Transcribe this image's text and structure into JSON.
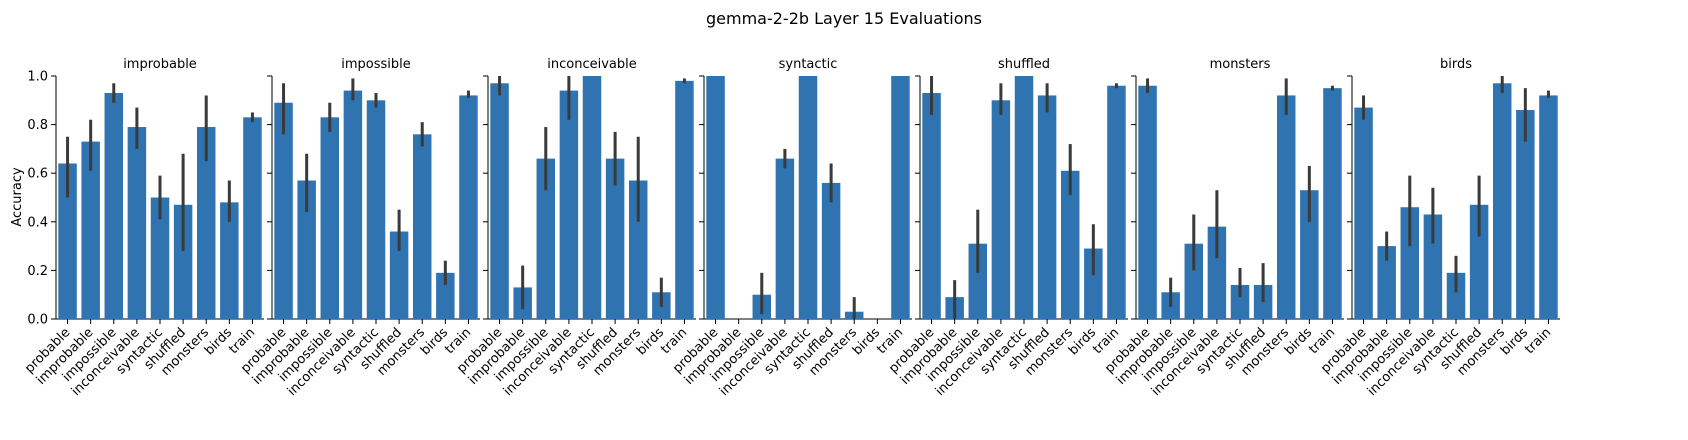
{
  "chart_data": {
    "type": "bar",
    "title": "gemma-2-2b Layer 15 Evaluations",
    "ylabel": "Accuracy",
    "ylim": [
      0,
      1.0
    ],
    "yticks": [
      "0.0",
      "0.2",
      "0.4",
      "0.6",
      "0.8",
      "1.0"
    ],
    "bar_color": "#2f74b1",
    "errorbar_color": "#3a3a3a",
    "categories": [
      "probable",
      "improbable",
      "impossible",
      "inconceivable",
      "syntactic",
      "shuffled",
      "monsters",
      "birds",
      "train"
    ],
    "panels": [
      {
        "title": "improbable",
        "values": [
          0.64,
          0.73,
          0.93,
          0.79,
          0.5,
          0.47,
          0.79,
          0.48,
          0.83
        ],
        "err_low": [
          0.5,
          0.61,
          0.89,
          0.7,
          0.41,
          0.28,
          0.65,
          0.4,
          0.81
        ],
        "err_high": [
          0.75,
          0.82,
          0.97,
          0.87,
          0.59,
          0.68,
          0.92,
          0.57,
          0.85
        ]
      },
      {
        "title": "impossible",
        "values": [
          0.89,
          0.57,
          0.83,
          0.94,
          0.9,
          0.36,
          0.76,
          0.19,
          0.92
        ],
        "err_low": [
          0.76,
          0.44,
          0.77,
          0.9,
          0.87,
          0.28,
          0.71,
          0.14,
          0.91
        ],
        "err_high": [
          0.97,
          0.68,
          0.89,
          0.99,
          0.93,
          0.45,
          0.81,
          0.24,
          0.94
        ]
      },
      {
        "title": "inconceivable",
        "values": [
          0.97,
          0.13,
          0.66,
          0.94,
          1.0,
          0.66,
          0.57,
          0.11,
          0.98
        ],
        "err_low": [
          0.92,
          0.04,
          0.53,
          0.82,
          1.0,
          0.55,
          0.4,
          0.05,
          0.97
        ],
        "err_high": [
          1.0,
          0.22,
          0.79,
          1.0,
          1.0,
          0.77,
          0.75,
          0.17,
          0.99
        ]
      },
      {
        "title": "syntactic",
        "values": [
          1.0,
          0.0,
          0.1,
          0.66,
          1.0,
          0.56,
          0.03,
          0.0,
          1.0
        ],
        "err_low": [
          1.0,
          0.0,
          0.02,
          0.62,
          1.0,
          0.48,
          0.0,
          0.0,
          1.0
        ],
        "err_high": [
          1.0,
          0.0,
          0.19,
          0.7,
          1.0,
          0.64,
          0.09,
          0.0,
          1.0
        ]
      },
      {
        "title": "shuffled",
        "values": [
          0.93,
          0.09,
          0.31,
          0.9,
          1.0,
          0.92,
          0.61,
          0.29,
          0.96
        ],
        "err_low": [
          0.84,
          0.0,
          0.19,
          0.84,
          1.0,
          0.85,
          0.51,
          0.18,
          0.95
        ],
        "err_high": [
          1.0,
          0.16,
          0.45,
          0.97,
          1.0,
          0.97,
          0.72,
          0.39,
          0.97
        ]
      },
      {
        "title": "monsters",
        "values": [
          0.96,
          0.11,
          0.31,
          0.38,
          0.14,
          0.14,
          0.92,
          0.53,
          0.95
        ],
        "err_low": [
          0.93,
          0.05,
          0.2,
          0.25,
          0.09,
          0.07,
          0.84,
          0.4,
          0.94
        ],
        "err_high": [
          0.99,
          0.17,
          0.43,
          0.53,
          0.21,
          0.23,
          0.99,
          0.63,
          0.96
        ]
      },
      {
        "title": "birds",
        "values": [
          0.87,
          0.3,
          0.46,
          0.43,
          0.19,
          0.47,
          0.97,
          0.86,
          0.92
        ],
        "err_low": [
          0.82,
          0.24,
          0.3,
          0.31,
          0.11,
          0.34,
          0.93,
          0.73,
          0.91
        ],
        "err_high": [
          0.92,
          0.36,
          0.59,
          0.54,
          0.26,
          0.59,
          1.0,
          0.95,
          0.94
        ]
      }
    ]
  }
}
